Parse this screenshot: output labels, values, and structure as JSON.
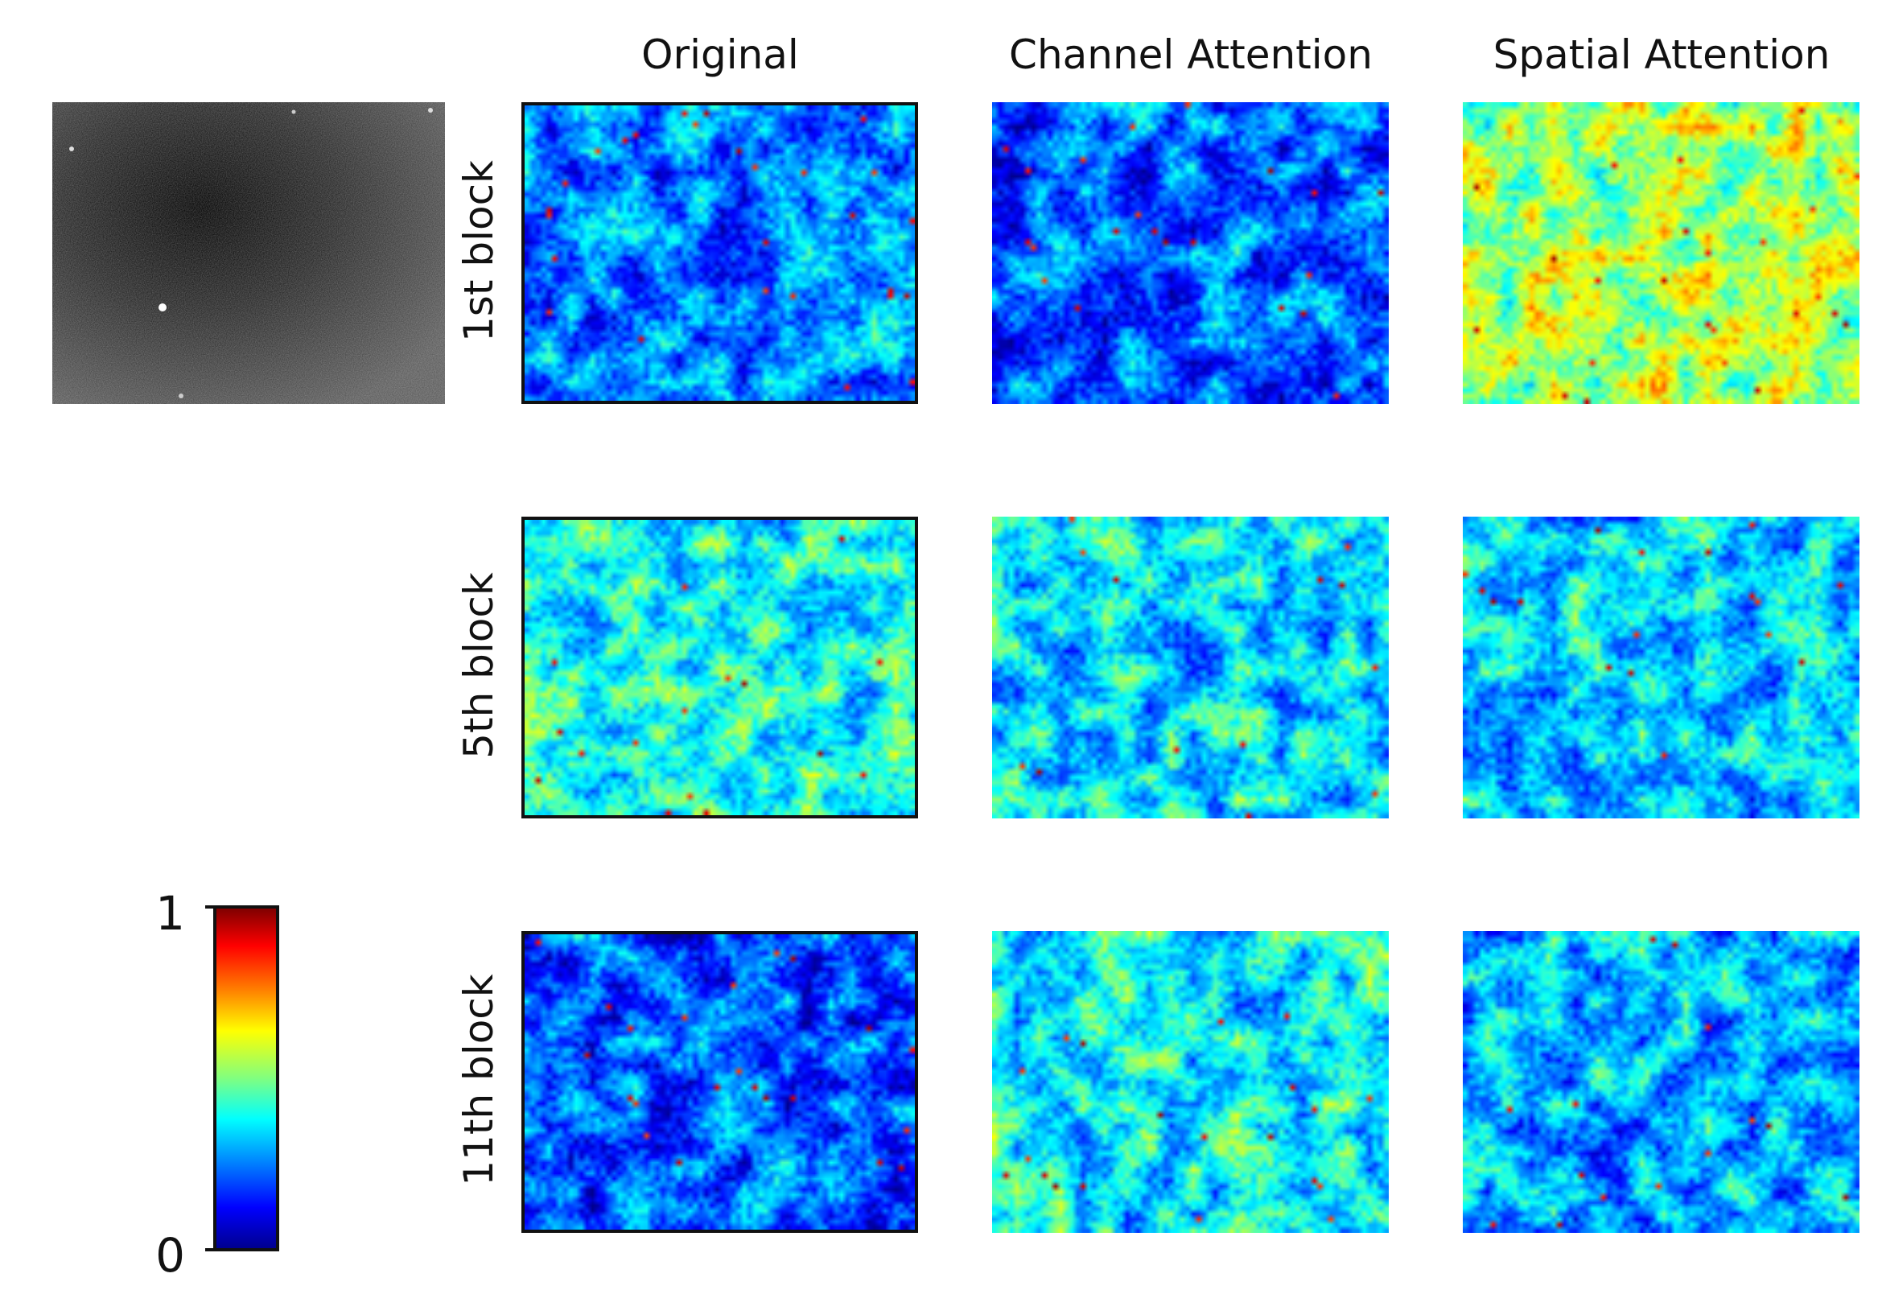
{
  "columns": {
    "original": "Original",
    "channel": "Channel Attention",
    "spatial": "Spatial Attention"
  },
  "rows": {
    "r1": "1st block",
    "r5": "5th block",
    "r11": "11th block"
  },
  "colorbar": {
    "max_label": "1",
    "min_label": "0",
    "colormap": "jet",
    "colors": [
      "#00008f",
      "#0000ff",
      "#0080ff",
      "#00ffff",
      "#80ff80",
      "#ffff00",
      "#ff8000",
      "#ff0000",
      "#800000"
    ]
  },
  "input_image": {
    "style": "grayscale noisy"
  },
  "heatmaps": [
    {
      "row": "1st block",
      "column": "Original",
      "mean_level": 0.25,
      "bordered": true
    },
    {
      "row": "1st block",
      "column": "Channel Attention",
      "mean_level": 0.22,
      "bordered": false
    },
    {
      "row": "1st block",
      "column": "Spatial Attention",
      "mean_level": 0.55,
      "bordered": false
    },
    {
      "row": "5th block",
      "column": "Original",
      "mean_level": 0.4,
      "bordered": true
    },
    {
      "row": "5th block",
      "column": "Channel Attention",
      "mean_level": 0.35,
      "bordered": false
    },
    {
      "row": "5th block",
      "column": "Spatial Attention",
      "mean_level": 0.33,
      "bordered": false
    },
    {
      "row": "11th block",
      "column": "Original",
      "mean_level": 0.2,
      "bordered": true
    },
    {
      "row": "11th block",
      "column": "Channel Attention",
      "mean_level": 0.38,
      "bordered": false
    },
    {
      "row": "11th block",
      "column": "Spatial Attention",
      "mean_level": 0.3,
      "bordered": false
    }
  ]
}
